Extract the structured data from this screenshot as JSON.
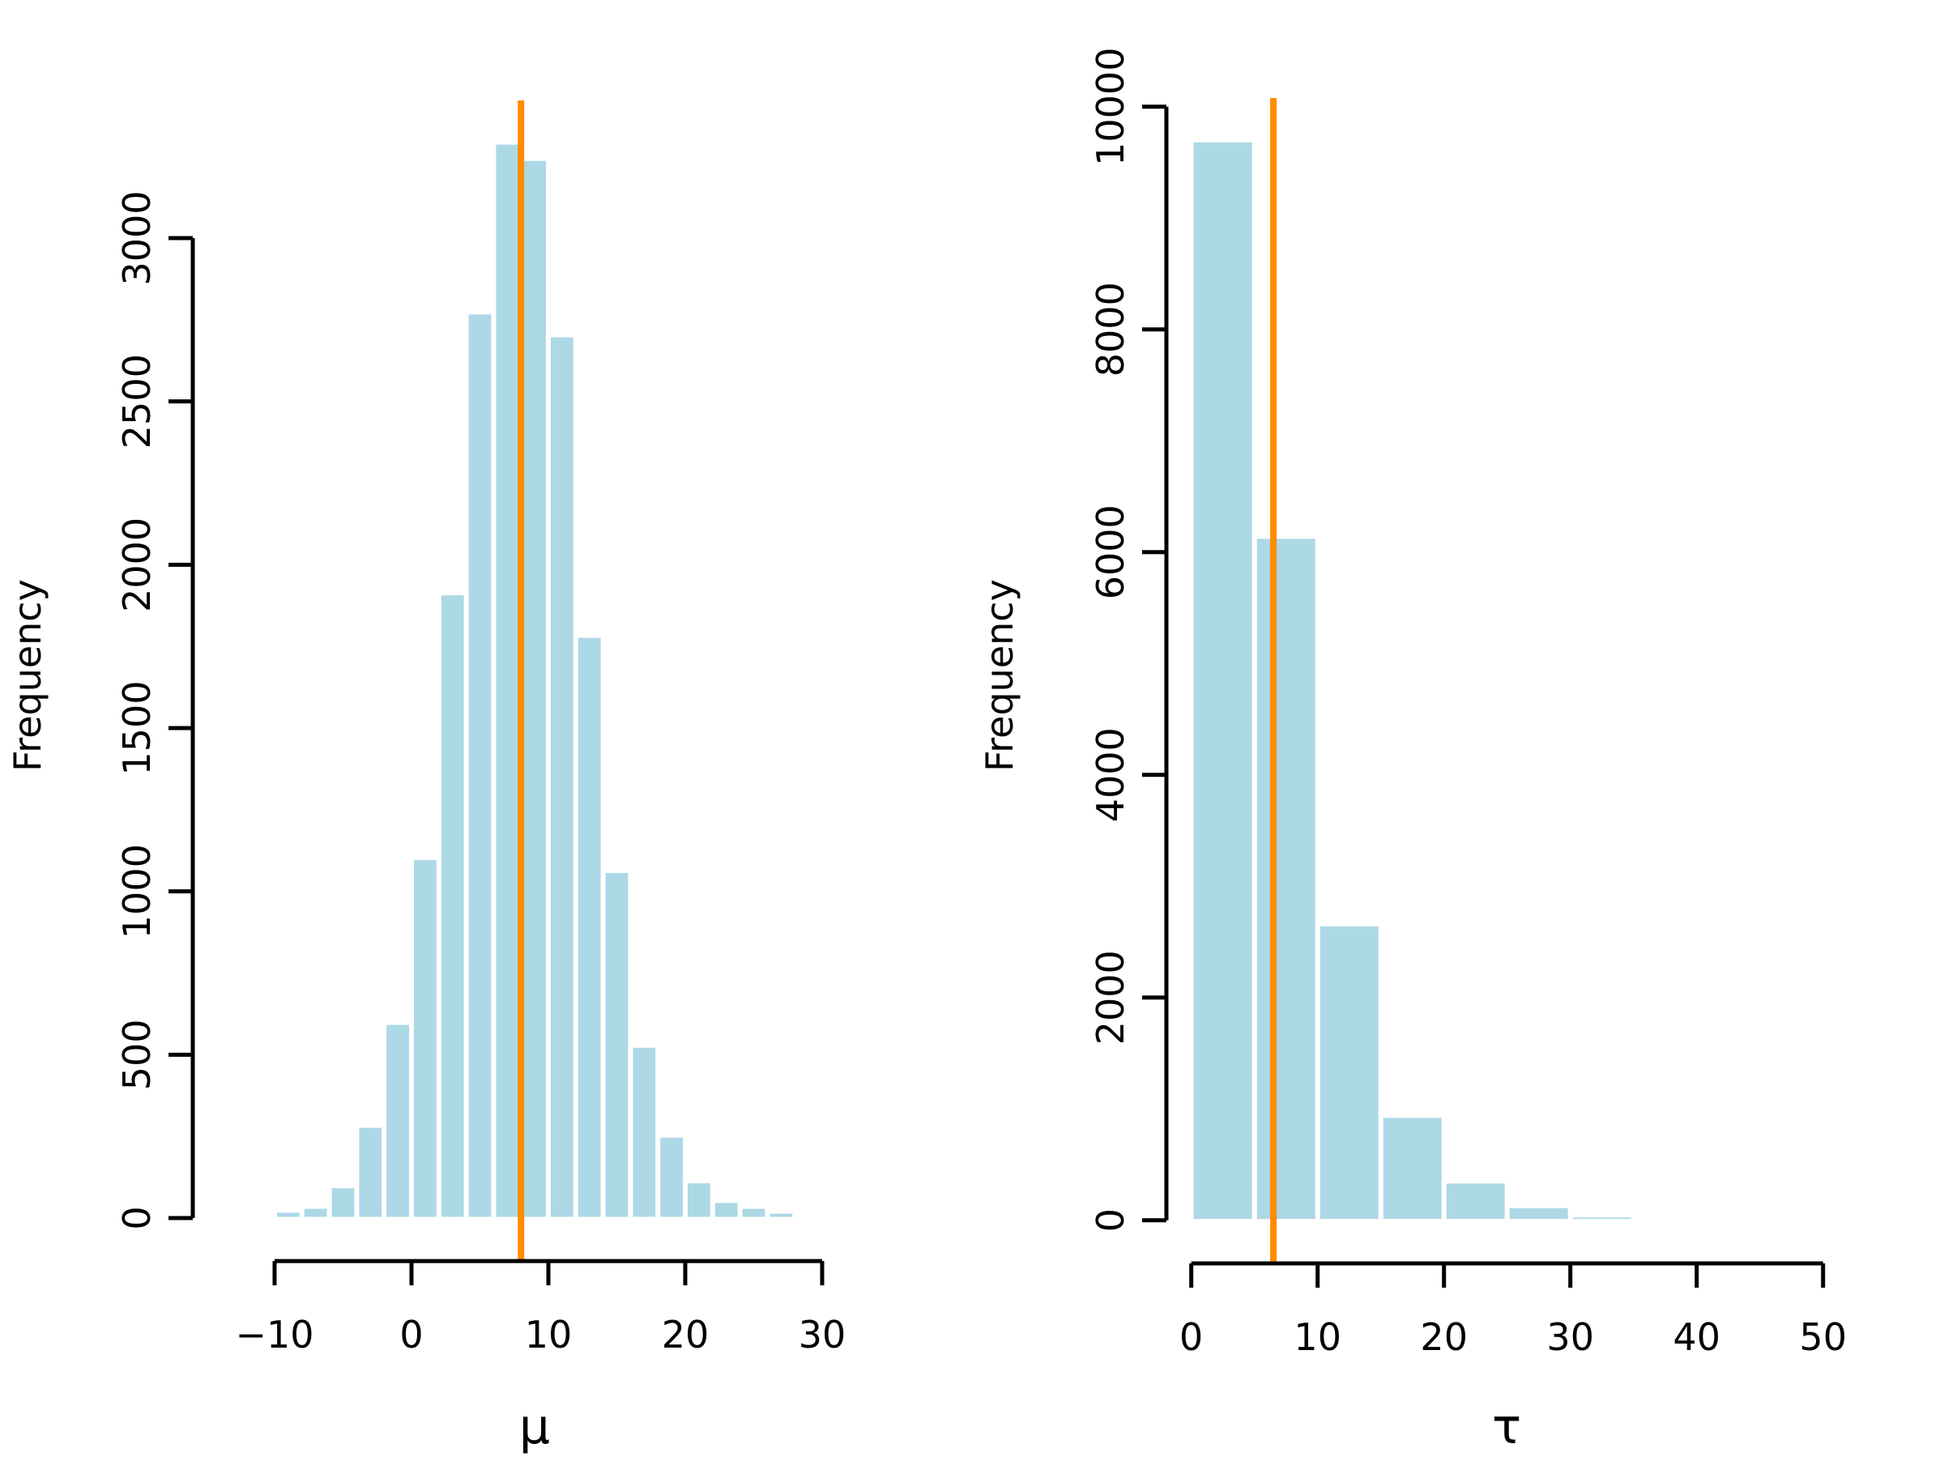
{
  "figure": {
    "background": "#FFFFFF",
    "description": "Two side-by-side histograms with orange vertical reference lines"
  },
  "colors": {
    "bar_fill": "#ADD8E6",
    "bar_border": "#FFFFFF",
    "axis": "#000000",
    "text": "#000000",
    "vline": "#FF8C00"
  },
  "chart_data": [
    {
      "type": "bar",
      "subtype": "histogram",
      "title": "",
      "xlabel": "μ",
      "ylabel": "Frequency",
      "bin_start": -12,
      "bin_width": 2,
      "counts": [
        5,
        20,
        32,
        95,
        280,
        595,
        1100,
        1910,
        2770,
        3290,
        3240,
        2700,
        1780,
        1060,
        525,
        250,
        110,
        50,
        32,
        17,
        3
      ],
      "x_ticks": [
        {
          "value": -10,
          "label": "−10"
        },
        {
          "value": 0,
          "label": "0"
        },
        {
          "value": 10,
          "label": "10"
        },
        {
          "value": 20,
          "label": "20"
        },
        {
          "value": 30,
          "label": "30"
        }
      ],
      "y_ticks": [
        {
          "value": 0,
          "label": "0"
        },
        {
          "value": 500,
          "label": "500"
        },
        {
          "value": 1000,
          "label": "1000"
        },
        {
          "value": 1500,
          "label": "1500"
        },
        {
          "value": 2000,
          "label": "2000"
        },
        {
          "value": 2500,
          "label": "2500"
        },
        {
          "value": 3000,
          "label": "3000"
        }
      ],
      "xlim": [
        -10,
        30
      ],
      "ylim": [
        0,
        3290
      ],
      "grid": false,
      "legend": null,
      "vline_value": 8
    },
    {
      "type": "bar",
      "subtype": "histogram",
      "title": "",
      "xlabel": "τ",
      "ylabel": "Frequency",
      "bin_start": 0,
      "bin_width": 5,
      "counts": [
        9690,
        6130,
        2650,
        930,
        340,
        120,
        35
      ],
      "x_ticks": [
        {
          "value": 0,
          "label": "0"
        },
        {
          "value": 10,
          "label": "10"
        },
        {
          "value": 20,
          "label": "20"
        },
        {
          "value": 30,
          "label": "30"
        },
        {
          "value": 40,
          "label": "40"
        },
        {
          "value": 50,
          "label": "50"
        }
      ],
      "y_ticks": [
        {
          "value": 0,
          "label": "0"
        },
        {
          "value": 2000,
          "label": "2000"
        },
        {
          "value": 4000,
          "label": "4000"
        },
        {
          "value": 6000,
          "label": "6000"
        },
        {
          "value": 8000,
          "label": "8000"
        },
        {
          "value": 10000,
          "label": "10000"
        }
      ],
      "xlim": [
        0,
        50
      ],
      "ylim": [
        0,
        9690
      ],
      "grid": false,
      "legend": null,
      "vline_value": 6.5
    }
  ]
}
